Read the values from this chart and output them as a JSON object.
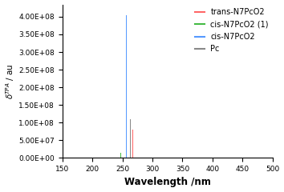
{
  "title": "",
  "xlabel": "Wavelength /nm",
  "ylabel": "δTPA / au",
  "xlim": [
    150,
    500
  ],
  "ylim": [
    0,
    435000000.0
  ],
  "yticks": [
    0,
    50000000.0,
    100000000.0,
    150000000.0,
    200000000.0,
    250000000.0,
    300000000.0,
    350000000.0,
    400000000.0
  ],
  "xticks": [
    150,
    200,
    250,
    300,
    350,
    400,
    450,
    500
  ],
  "series": [
    {
      "label": "trans-N7PcO2",
      "color": "#ff6666",
      "bars": [
        {
          "x": 267,
          "height": 80000000.0
        }
      ]
    },
    {
      "label": "cis-N7PcO2 (1)",
      "color": "#44bb44",
      "bars": [
        {
          "x": 247,
          "height": 15000000.0
        }
      ]
    },
    {
      "label": "cis-N7PcO2",
      "color": "#5599ff",
      "bars": [
        {
          "x": 257,
          "height": 405000000.0
        }
      ]
    },
    {
      "label": "Pc",
      "color": "#888888",
      "bars": [
        {
          "x": 263,
          "height": 110000000.0
        }
      ]
    }
  ],
  "bar_width": 1.5,
  "background_color": "#ffffff",
  "fontsize": 7.5,
  "xlabel_fontsize": 8.5,
  "ylabel_fontsize": 7.5
}
